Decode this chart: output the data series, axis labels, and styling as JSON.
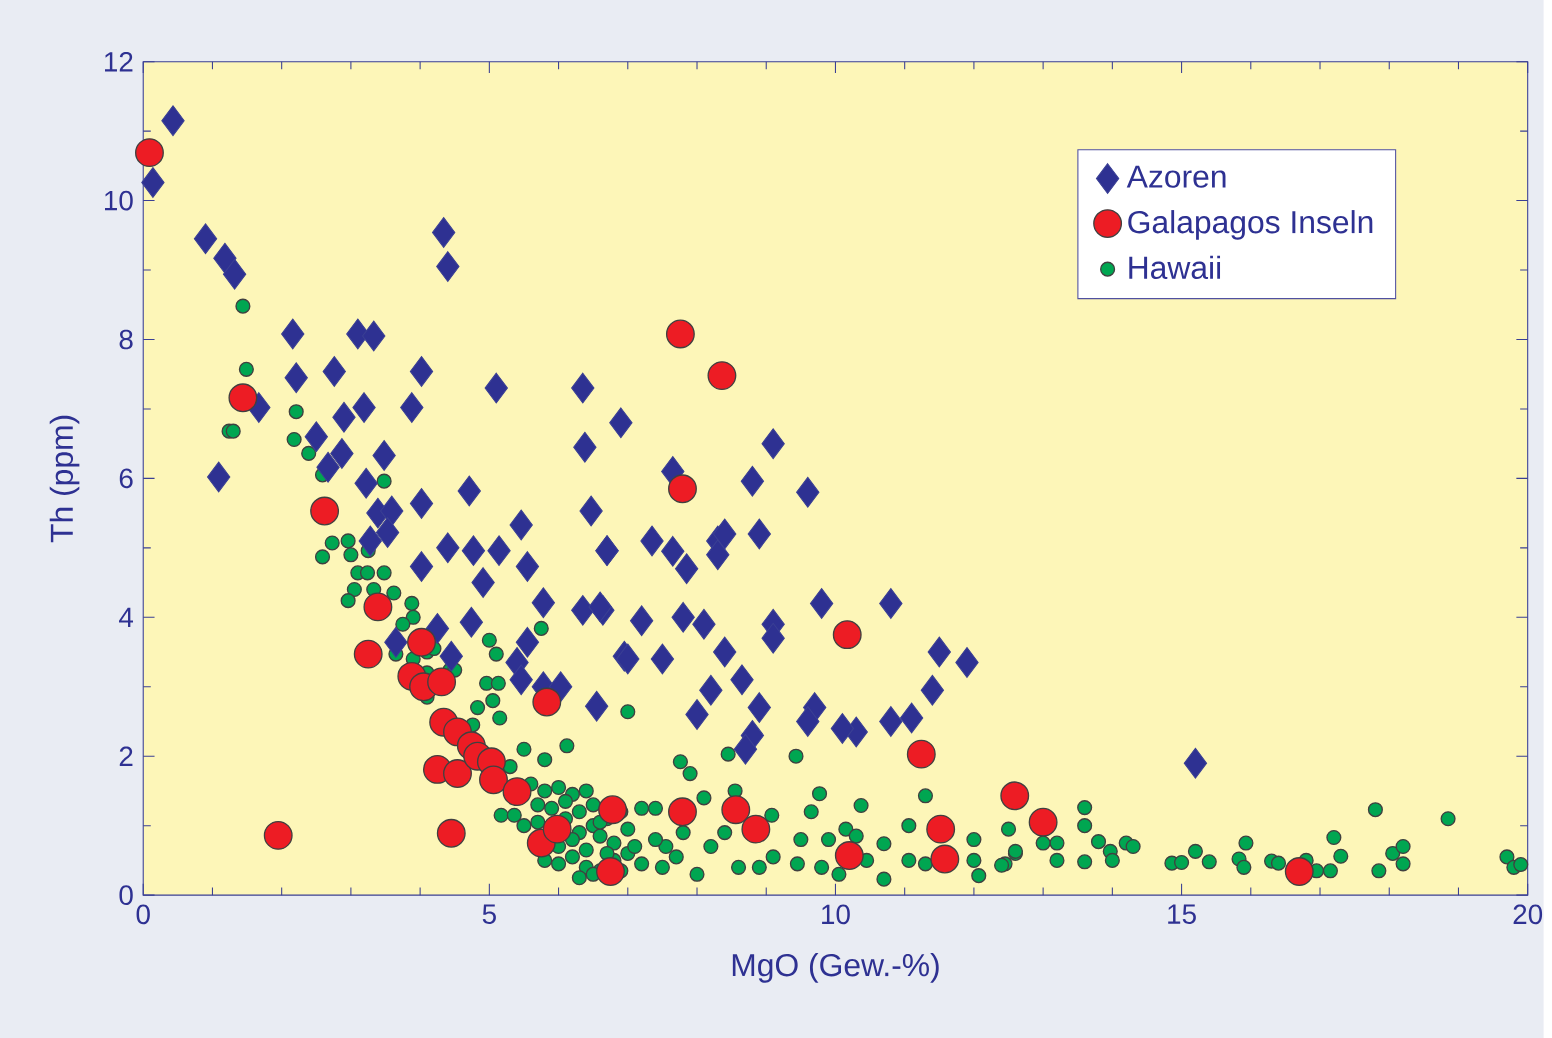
{
  "chart_data": {
    "type": "scatter",
    "xlabel": "MgO (Gew.-%)",
    "ylabel": "Th (ppm)",
    "xlim": [
      0,
      20
    ],
    "ylim": [
      0,
      12
    ],
    "xticks": [
      0,
      5,
      10,
      15,
      20
    ],
    "yticks": [
      0,
      2,
      4,
      6,
      8,
      10,
      12
    ],
    "grid": false,
    "legend": "top right",
    "series": [
      {
        "name": "Azoren",
        "color": "#2e3192",
        "marker": "diamond",
        "x": [
          0.43,
          0.14,
          0.9,
          1.18,
          1.32,
          4.34,
          4.4,
          2.16,
          3.1,
          3.33,
          2.21,
          2.76,
          4.02,
          1.67,
          3.19,
          2.9,
          3.88,
          5.1,
          6.35,
          6.9,
          2.5,
          2.87,
          2.67,
          1.09,
          3.48,
          3.22,
          6.38,
          4.02,
          4.71,
          3.39,
          3.59,
          6.47,
          3.53,
          3.28,
          5.46,
          4.4,
          4.77,
          5.14,
          6.7,
          4.02,
          4.91,
          5.55,
          5.78,
          6.35,
          6.64,
          4.25,
          4.74,
          3.65,
          4.45,
          5.55,
          5.4,
          5.46,
          5.78,
          6.03,
          6.55,
          6.95,
          9.1,
          8.8,
          9.6,
          8.9,
          10.8,
          9.8,
          11.5,
          11.9,
          11.4,
          11.1,
          10.8,
          10.3,
          10.1,
          9.7,
          9.6,
          8.9,
          8.65,
          8.8,
          8.7,
          8.2,
          8.0,
          8.4,
          8.1,
          7.8,
          9.1,
          9.1,
          7.5,
          7.0,
          7.2,
          6.6,
          7.35,
          7.65,
          7.85,
          8.3,
          8.4,
          8.3,
          6.7,
          7.65,
          15.2
        ],
        "values": [
          11.15,
          10.26,
          9.45,
          9.17,
          8.94,
          9.54,
          9.05,
          8.08,
          8.08,
          8.05,
          7.45,
          7.54,
          7.54,
          7.02,
          7.02,
          6.88,
          7.02,
          7.3,
          7.3,
          6.8,
          6.6,
          6.36,
          6.16,
          6.02,
          6.33,
          5.93,
          6.45,
          5.64,
          5.82,
          5.5,
          5.53,
          5.53,
          5.22,
          5.1,
          5.33,
          5.0,
          4.96,
          4.96,
          4.96,
          4.73,
          4.5,
          4.73,
          4.21,
          4.1,
          4.1,
          3.84,
          3.93,
          3.64,
          3.44,
          3.64,
          3.35,
          3.1,
          3.0,
          3.0,
          2.72,
          3.44,
          6.5,
          5.96,
          5.8,
          5.2,
          4.2,
          4.2,
          3.5,
          3.35,
          2.95,
          2.55,
          2.5,
          2.35,
          2.4,
          2.7,
          2.5,
          2.7,
          3.1,
          2.3,
          2.1,
          2.95,
          2.6,
          3.5,
          3.9,
          4.0,
          3.9,
          3.7,
          3.4,
          3.4,
          3.95,
          4.15,
          5.1,
          4.95,
          4.7,
          5.1,
          5.2,
          4.9,
          4.96,
          6.1,
          1.9
        ]
      },
      {
        "name": "Galapagos Inseln",
        "color": "#ed1c24",
        "marker": "circle",
        "x": [
          0.09,
          1.44,
          2.62,
          3.39,
          3.25,
          4.02,
          3.88,
          4.05,
          4.31,
          4.34,
          4.54,
          4.74,
          4.25,
          4.54,
          4.83,
          5.03,
          5.06,
          5.4,
          5.83,
          1.95,
          4.45,
          5.75,
          5.98,
          6.75,
          7.76,
          8.36,
          7.79,
          10.17,
          11.24,
          12.59,
          11.52,
          11.58,
          8.56,
          8.85,
          7.79,
          6.78,
          10.2,
          13.0,
          16.7
        ],
        "values": [
          10.69,
          7.16,
          5.53,
          4.15,
          3.47,
          3.64,
          3.15,
          3.0,
          3.07,
          2.49,
          2.35,
          2.15,
          1.81,
          1.75,
          2.0,
          1.92,
          1.66,
          1.49,
          2.78,
          0.86,
          0.89,
          0.75,
          0.95,
          0.34,
          8.08,
          7.48,
          5.85,
          3.75,
          2.03,
          1.43,
          0.95,
          0.52,
          1.23,
          0.95,
          1.2,
          1.23,
          0.57,
          1.05,
          0.34
        ]
      },
      {
        "name": "Hawaii",
        "color": "#00a651",
        "marker": "circle",
        "x": [
          1.44,
          1.49,
          2.21,
          1.24,
          1.3,
          2.18,
          2.39,
          2.59,
          3.48,
          2.73,
          2.59,
          2.96,
          3.0,
          3.25,
          3.1,
          3.24,
          3.48,
          3.05,
          3.33,
          2.96,
          3.62,
          3.88,
          3.9,
          3.75,
          5.75,
          3.65,
          3.9,
          4.1,
          4.2,
          4.43,
          4.5,
          4.1,
          4.1,
          5.0,
          5.1,
          4.96,
          5.13,
          5.05,
          5.15,
          4.83,
          4.76,
          7.0,
          6.12,
          5.5,
          5.8,
          5.3,
          5.17,
          5.36,
          5.6,
          5.8,
          6.0,
          6.2,
          6.4,
          5.7,
          5.9,
          6.1,
          6.3,
          6.5,
          5.5,
          5.7,
          6.1,
          6.3,
          6.5,
          6.7,
          6.0,
          6.2,
          6.4,
          6.6,
          6.8,
          7.0,
          5.8,
          6.0,
          6.2,
          6.4,
          6.6,
          6.8,
          7.2,
          6.3,
          6.5,
          6.9,
          7.76,
          7.9,
          8.45,
          9.43,
          11.3,
          10.37,
          11.06,
          10.7,
          10.45,
          10.7,
          11.06,
          11.3,
          12.0,
          12.0,
          12.07,
          12.45,
          12.5,
          12.6,
          9.77,
          9.65,
          10.15,
          9.9,
          10.3,
          10.05,
          9.8,
          9.5,
          9.45,
          9.08,
          9.1,
          8.9,
          8.6,
          8.4,
          8.2,
          8.1,
          8.55,
          8.0,
          7.7,
          7.5,
          7.55,
          7.8,
          7.4,
          7.1,
          7.0,
          6.9,
          7.2,
          7.4,
          6.6,
          6.7,
          12.4,
          12.6,
          13.6,
          13.6,
          13.2,
          13.0,
          13.2,
          13.6,
          13.8,
          13.97,
          14.0,
          14.2,
          14.3,
          14.86,
          15.0,
          15.2,
          15.4,
          15.83,
          15.93,
          15.9,
          16.3,
          16.4,
          16.8,
          16.95,
          17.15,
          17.2,
          17.3,
          17.8,
          17.85,
          18.05,
          18.2,
          18.2,
          18.85,
          19.7,
          19.8,
          19.9
        ],
        "values": [
          8.48,
          7.57,
          6.96,
          6.68,
          6.68,
          6.56,
          6.36,
          6.05,
          5.96,
          5.07,
          4.87,
          5.1,
          4.9,
          4.96,
          4.64,
          4.64,
          4.64,
          4.4,
          4.4,
          4.24,
          4.35,
          4.2,
          4.0,
          3.9,
          3.84,
          3.47,
          3.4,
          3.5,
          3.55,
          3.24,
          3.24,
          3.2,
          2.85,
          3.67,
          3.47,
          3.05,
          3.05,
          2.8,
          2.55,
          2.7,
          2.45,
          2.64,
          2.15,
          2.1,
          1.95,
          1.85,
          1.15,
          1.15,
          1.6,
          1.5,
          1.55,
          1.45,
          1.5,
          1.3,
          1.25,
          1.35,
          1.2,
          1.3,
          1.0,
          1.05,
          1.1,
          0.9,
          1.0,
          1.1,
          0.7,
          0.8,
          0.65,
          0.85,
          0.75,
          0.6,
          0.5,
          0.45,
          0.55,
          0.4,
          0.35,
          0.5,
          0.45,
          0.25,
          0.3,
          1.2,
          1.92,
          1.75,
          2.03,
          2.0,
          1.43,
          1.29,
          1.0,
          0.74,
          0.5,
          0.23,
          0.5,
          0.45,
          0.8,
          0.5,
          0.28,
          0.45,
          0.95,
          0.6,
          1.46,
          1.2,
          0.95,
          0.8,
          0.85,
          0.3,
          0.4,
          0.8,
          0.45,
          1.15,
          0.55,
          0.4,
          0.4,
          0.9,
          0.7,
          1.4,
          1.5,
          0.3,
          0.55,
          0.4,
          0.7,
          0.9,
          0.8,
          0.7,
          0.95,
          0.35,
          1.25,
          1.25,
          1.05,
          0.6,
          0.43,
          0.63,
          1.26,
          1.0,
          0.75,
          0.75,
          0.5,
          0.48,
          0.77,
          0.63,
          0.5,
          0.75,
          0.7,
          0.46,
          0.47,
          0.63,
          0.48,
          0.52,
          0.75,
          0.4,
          0.49,
          0.46,
          0.5,
          0.35,
          0.35,
          0.83,
          0.56,
          1.23,
          0.35,
          0.6,
          0.7,
          0.45,
          1.1,
          0.55,
          0.4,
          0.44
        ]
      }
    ]
  }
}
